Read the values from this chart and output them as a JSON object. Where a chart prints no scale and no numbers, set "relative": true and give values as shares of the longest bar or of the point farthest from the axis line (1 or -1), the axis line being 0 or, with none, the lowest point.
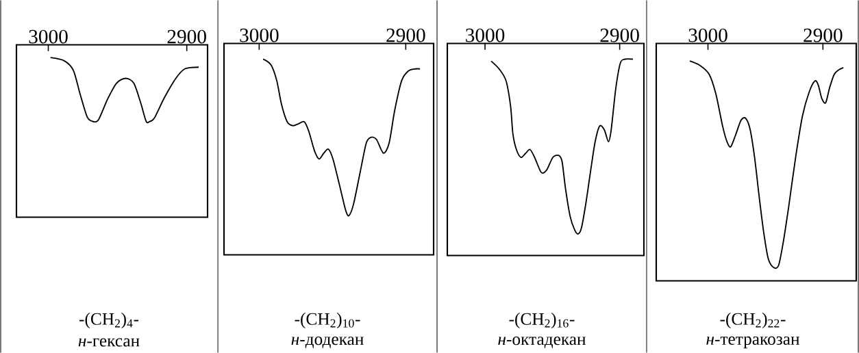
{
  "chart_data": [
    {
      "type": "line",
      "relative": true,
      "xlim": [
        3023,
        2885
      ],
      "xticks": [
        3000,
        2900
      ],
      "xlabel": "-(CH$_{2}$)$_{4}$-",
      "annotations": [
        "*н*-гексан"
      ],
      "line_style": "solid",
      "x": [
        2998.4,
        2988.5,
        2981.9,
        2977.0,
        2972.0,
        2967.9,
        2963.8,
        2957.2,
        2950.7,
        2944.1,
        2938.3,
        2933.4,
        2929.3,
        2926.8,
        2923.5,
        2916.1,
        2907.9,
        2901.3,
        2891.4
      ],
      "series": [
        {
          "color": "#000000",
          "values": [
            1.0,
            0.98,
            0.92,
            0.77,
            0.63,
            0.6,
            0.61,
            0.74,
            0.84,
            0.87,
            0.84,
            0.72,
            0.6,
            0.6,
            0.62,
            0.75,
            0.87,
            0.93,
            0.94
          ]
        }
      ]
    },
    {
      "type": "line",
      "relative": true,
      "xlim": [
        3024,
        2881
      ],
      "xticks": [
        3000,
        2900
      ],
      "xlabel": "-(CH$_{2}$)$_{10}$-",
      "annotations": [
        "*н*-додекан"
      ],
      "line_style": "solid",
      "x": [
        2997.3,
        2991.9,
        2988.0,
        2984.8,
        2980.9,
        2977.0,
        2973.1,
        2969.2,
        2966.1,
        2962.2,
        2959.1,
        2955.9,
        2952.8,
        2949.7,
        2945.0,
        2941.1,
        2938.8,
        2935.6,
        2930.9,
        2927.0,
        2923.9,
        2920.0,
        2915.3,
        2911.4,
        2907.5,
        2902.8,
        2898.1,
        2893.4,
        2890.3
      ],
      "series": [
        {
          "color": "#000000",
          "values": [
            1.0,
            0.97,
            0.89,
            0.77,
            0.68,
            0.66,
            0.67,
            0.68,
            0.63,
            0.53,
            0.49,
            0.52,
            0.54,
            0.49,
            0.35,
            0.23,
            0.2,
            0.26,
            0.43,
            0.57,
            0.6,
            0.59,
            0.52,
            0.57,
            0.74,
            0.89,
            0.94,
            0.95,
            0.95
          ]
        }
      ]
    },
    {
      "type": "line",
      "relative": true,
      "xlim": [
        3028,
        2882
      ],
      "xticks": [
        3000,
        2900
      ],
      "xlabel": "-(CH$_{2}$)$_{16}$-",
      "annotations": [
        "*н*-октадекан"
      ],
      "line_style": "solid",
      "x": [
        2995.4,
        2989.5,
        2984.4,
        2981.0,
        2979.3,
        2976.7,
        2973.3,
        2969.9,
        2966.6,
        2963.2,
        2958.9,
        2956.9,
        2953.8,
        2949.6,
        2945.3,
        2942.8,
        2940.2,
        2936.8,
        2933.4,
        2930.9,
        2928.4,
        2925.0,
        2921.6,
        2918.2,
        2914.8,
        2911.4,
        2908.3,
        2906.3,
        2902.9,
        2899.5,
        2896.1,
        2890.2
      ],
      "series": [
        {
          "color": "#000000",
          "values": [
            0.99,
            0.95,
            0.89,
            0.76,
            0.62,
            0.54,
            0.5,
            0.52,
            0.54,
            0.5,
            0.43,
            0.42,
            0.44,
            0.5,
            0.51,
            0.48,
            0.34,
            0.2,
            0.13,
            0.11,
            0.14,
            0.27,
            0.43,
            0.58,
            0.66,
            0.64,
            0.58,
            0.64,
            0.85,
            0.98,
            1.0,
            1.0
          ]
        }
      ]
    },
    {
      "type": "line",
      "relative": true,
      "xlim": [
        3045,
        2871
      ],
      "xticks": [
        3000,
        2900
      ],
      "xlabel": "-(CH$_{2}$)$_{22}$-",
      "annotations": [
        "*н*-тетракозан"
      ],
      "line_style": "solid",
      "x": [
        3015.8,
        3006.9,
        2999.0,
        2993.1,
        2987.1,
        2983.2,
        2980.2,
        2976.2,
        2971.3,
        2967.3,
        2963.4,
        2959.4,
        2955.4,
        2951.5,
        2947.5,
        2942.6,
        2938.6,
        2934.7,
        2929.7,
        2923.8,
        2917.8,
        2911.9,
        2906.9,
        2904.0,
        2901.0,
        2897.6,
        2894.1,
        2890.1,
        2886.1,
        2882.2
      ],
      "series": [
        {
          "color": "#000000",
          "values": [
            1.0,
            0.98,
            0.94,
            0.85,
            0.7,
            0.63,
            0.61,
            0.66,
            0.73,
            0.74,
            0.69,
            0.56,
            0.38,
            0.22,
            0.1,
            0.06,
            0.07,
            0.17,
            0.34,
            0.56,
            0.75,
            0.86,
            0.91,
            0.89,
            0.83,
            0.81,
            0.88,
            0.94,
            0.96,
            0.97
          ]
        }
      ]
    }
  ]
}
